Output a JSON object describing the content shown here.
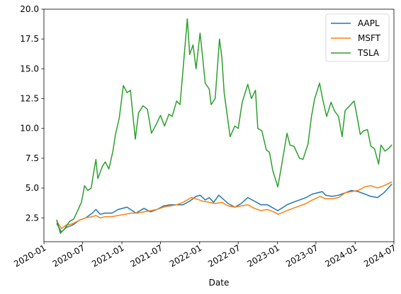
{
  "chart_data": {
    "type": "line",
    "title": "",
    "xlabel": "Date",
    "ylabel": "",
    "xlim": [
      "2020-01-01",
      "2024-07-01"
    ],
    "ylim": [
      0.5,
      20.0
    ],
    "grid": false,
    "legend_position": "top-right",
    "x_ticks": [
      "2020-01",
      "2020-07",
      "2021-01",
      "2021-07",
      "2022-01",
      "2022-07",
      "2023-01",
      "2023-07",
      "2024-01",
      "2024-07"
    ],
    "y_ticks": [
      "2.5",
      "5.0",
      "7.5",
      "10.0",
      "12.5",
      "15.0",
      "17.5",
      "20.0"
    ],
    "series": [
      {
        "name": "AAPL",
        "color": "#1f77b4",
        "points": [
          [
            "2020-03-02",
            2.0
          ],
          [
            "2020-03-23",
            1.3
          ],
          [
            "2020-04-15",
            1.7
          ],
          [
            "2020-05-15",
            1.9
          ],
          [
            "2020-06-15",
            2.3
          ],
          [
            "2020-07-15",
            2.5
          ],
          [
            "2020-08-15",
            2.9
          ],
          [
            "2020-09-01",
            3.2
          ],
          [
            "2020-09-21",
            2.8
          ],
          [
            "2020-10-15",
            2.9
          ],
          [
            "2020-11-15",
            2.9
          ],
          [
            "2020-12-15",
            3.2
          ],
          [
            "2021-01-25",
            3.4
          ],
          [
            "2021-03-08",
            2.9
          ],
          [
            "2021-04-15",
            3.3
          ],
          [
            "2021-05-15",
            3.0
          ],
          [
            "2021-06-15",
            3.2
          ],
          [
            "2021-07-15",
            3.5
          ],
          [
            "2021-08-15",
            3.6
          ],
          [
            "2021-09-15",
            3.6
          ],
          [
            "2021-10-15",
            3.6
          ],
          [
            "2021-11-15",
            3.9
          ],
          [
            "2021-12-15",
            4.3
          ],
          [
            "2022-01-03",
            4.4
          ],
          [
            "2022-01-28",
            4.0
          ],
          [
            "2022-02-15",
            4.2
          ],
          [
            "2022-03-08",
            3.8
          ],
          [
            "2022-04-01",
            4.4
          ],
          [
            "2022-05-15",
            3.7
          ],
          [
            "2022-06-15",
            3.4
          ],
          [
            "2022-07-15",
            3.7
          ],
          [
            "2022-08-15",
            4.2
          ],
          [
            "2022-09-15",
            3.9
          ],
          [
            "2022-10-15",
            3.6
          ],
          [
            "2022-11-15",
            3.6
          ],
          [
            "2023-01-03",
            3.1
          ],
          [
            "2023-02-15",
            3.6
          ],
          [
            "2023-03-15",
            3.8
          ],
          [
            "2023-04-15",
            4.0
          ],
          [
            "2023-05-15",
            4.2
          ],
          [
            "2023-06-15",
            4.5
          ],
          [
            "2023-07-31",
            4.7
          ],
          [
            "2023-08-15",
            4.4
          ],
          [
            "2023-09-15",
            4.3
          ],
          [
            "2023-10-15",
            4.4
          ],
          [
            "2023-11-15",
            4.6
          ],
          [
            "2023-12-15",
            4.8
          ],
          [
            "2024-01-15",
            4.7
          ],
          [
            "2024-02-15",
            4.5
          ],
          [
            "2024-03-15",
            4.3
          ],
          [
            "2024-04-15",
            4.2
          ],
          [
            "2024-05-15",
            4.6
          ],
          [
            "2024-06-20",
            5.3
          ]
        ]
      },
      {
        "name": "MSFT",
        "color": "#ff7f0e",
        "points": [
          [
            "2020-03-02",
            2.2
          ],
          [
            "2020-03-23",
            1.6
          ],
          [
            "2020-04-15",
            1.9
          ],
          [
            "2020-05-15",
            2.0
          ],
          [
            "2020-06-15",
            2.3
          ],
          [
            "2020-07-15",
            2.5
          ],
          [
            "2020-08-15",
            2.6
          ],
          [
            "2020-09-01",
            2.7
          ],
          [
            "2020-09-21",
            2.5
          ],
          [
            "2020-10-15",
            2.6
          ],
          [
            "2020-11-15",
            2.6
          ],
          [
            "2020-12-15",
            2.7
          ],
          [
            "2021-01-15",
            2.8
          ],
          [
            "2021-02-15",
            2.9
          ],
          [
            "2021-03-15",
            2.9
          ],
          [
            "2021-04-15",
            3.0
          ],
          [
            "2021-05-15",
            3.1
          ],
          [
            "2021-06-15",
            3.2
          ],
          [
            "2021-07-15",
            3.4
          ],
          [
            "2021-08-15",
            3.5
          ],
          [
            "2021-09-15",
            3.6
          ],
          [
            "2021-10-15",
            3.8
          ],
          [
            "2021-11-22",
            4.2
          ],
          [
            "2021-12-15",
            4.1
          ],
          [
            "2022-01-15",
            3.9
          ],
          [
            "2022-02-15",
            3.8
          ],
          [
            "2022-03-15",
            3.7
          ],
          [
            "2022-04-15",
            3.8
          ],
          [
            "2022-05-15",
            3.5
          ],
          [
            "2022-06-15",
            3.4
          ],
          [
            "2022-07-15",
            3.5
          ],
          [
            "2022-08-15",
            3.6
          ],
          [
            "2022-09-15",
            3.3
          ],
          [
            "2022-10-15",
            3.1
          ],
          [
            "2022-11-15",
            3.2
          ],
          [
            "2022-12-15",
            3.0
          ],
          [
            "2023-01-05",
            2.8
          ],
          [
            "2023-02-15",
            3.1
          ],
          [
            "2023-03-15",
            3.3
          ],
          [
            "2023-04-15",
            3.5
          ],
          [
            "2023-05-15",
            3.7
          ],
          [
            "2023-06-15",
            4.0
          ],
          [
            "2023-07-20",
            4.3
          ],
          [
            "2023-08-15",
            4.1
          ],
          [
            "2023-09-15",
            4.1
          ],
          [
            "2023-10-15",
            4.2
          ],
          [
            "2023-11-15",
            4.6
          ],
          [
            "2023-12-15",
            4.7
          ],
          [
            "2024-01-15",
            4.8
          ],
          [
            "2024-02-15",
            5.1
          ],
          [
            "2024-03-15",
            5.2
          ],
          [
            "2024-04-15",
            5.0
          ],
          [
            "2024-05-15",
            5.2
          ],
          [
            "2024-06-20",
            5.5
          ]
        ]
      },
      {
        "name": "TSLA",
        "color": "#2ca02c",
        "points": [
          [
            "2020-03-02",
            2.3
          ],
          [
            "2020-03-18",
            1.2
          ],
          [
            "2020-04-08",
            1.6
          ],
          [
            "2020-04-30",
            2.2
          ],
          [
            "2020-05-20",
            2.4
          ],
          [
            "2020-06-10",
            3.2
          ],
          [
            "2020-06-25",
            3.8
          ],
          [
            "2020-07-10",
            5.2
          ],
          [
            "2020-07-25",
            4.8
          ],
          [
            "2020-08-10",
            5.0
          ],
          [
            "2020-08-25",
            6.7
          ],
          [
            "2020-09-01",
            7.4
          ],
          [
            "2020-09-10",
            5.8
          ],
          [
            "2020-10-01",
            6.8
          ],
          [
            "2020-10-15",
            7.2
          ],
          [
            "2020-11-01",
            6.6
          ],
          [
            "2020-11-20",
            8.1
          ],
          [
            "2020-12-01",
            9.4
          ],
          [
            "2020-12-20",
            10.9
          ],
          [
            "2021-01-08",
            13.6
          ],
          [
            "2021-01-25",
            13.0
          ],
          [
            "2021-02-10",
            13.2
          ],
          [
            "2021-03-05",
            9.1
          ],
          [
            "2021-03-20",
            11.3
          ],
          [
            "2021-04-10",
            11.9
          ],
          [
            "2021-05-01",
            11.6
          ],
          [
            "2021-05-20",
            9.6
          ],
          [
            "2021-06-10",
            10.3
          ],
          [
            "2021-07-01",
            11.1
          ],
          [
            "2021-07-20",
            10.2
          ],
          [
            "2021-08-10",
            11.2
          ],
          [
            "2021-08-25",
            11.0
          ],
          [
            "2021-09-15",
            12.3
          ],
          [
            "2021-10-01",
            12.0
          ],
          [
            "2021-10-15",
            14.9
          ],
          [
            "2021-11-04",
            19.2
          ],
          [
            "2021-11-15",
            16.2
          ],
          [
            "2021-12-01",
            17.0
          ],
          [
            "2021-12-15",
            15.0
          ],
          [
            "2022-01-03",
            18.0
          ],
          [
            "2022-01-15",
            16.0
          ],
          [
            "2022-01-27",
            13.8
          ],
          [
            "2022-02-15",
            13.3
          ],
          [
            "2022-02-24",
            12.0
          ],
          [
            "2022-03-15",
            12.5
          ],
          [
            "2022-04-04",
            17.5
          ],
          [
            "2022-04-15",
            16.0
          ],
          [
            "2022-04-26",
            13.0
          ],
          [
            "2022-05-24",
            9.3
          ],
          [
            "2022-06-15",
            10.2
          ],
          [
            "2022-07-01",
            10.0
          ],
          [
            "2022-07-20",
            12.2
          ],
          [
            "2022-08-15",
            13.7
          ],
          [
            "2022-09-01",
            12.5
          ],
          [
            "2022-09-20",
            13.2
          ],
          [
            "2022-10-01",
            10.0
          ],
          [
            "2022-10-20",
            9.8
          ],
          [
            "2022-11-10",
            8.2
          ],
          [
            "2022-11-25",
            8.0
          ],
          [
            "2022-12-10",
            6.5
          ],
          [
            "2023-01-03",
            5.1
          ],
          [
            "2023-01-20",
            6.8
          ],
          [
            "2023-02-15",
            9.6
          ],
          [
            "2023-03-01",
            8.6
          ],
          [
            "2023-03-20",
            8.5
          ],
          [
            "2023-04-15",
            7.5
          ],
          [
            "2023-05-01",
            7.4
          ],
          [
            "2023-05-25",
            8.7
          ],
          [
            "2023-06-10",
            11.0
          ],
          [
            "2023-06-25",
            12.5
          ],
          [
            "2023-07-18",
            13.8
          ],
          [
            "2023-08-01",
            12.5
          ],
          [
            "2023-08-20",
            11.0
          ],
          [
            "2023-09-10",
            12.2
          ],
          [
            "2023-09-25",
            11.5
          ],
          [
            "2023-10-15",
            11.0
          ],
          [
            "2023-11-01",
            9.3
          ],
          [
            "2023-11-15",
            11.5
          ],
          [
            "2023-12-01",
            11.8
          ],
          [
            "2023-12-27",
            12.3
          ],
          [
            "2024-01-10",
            11.0
          ],
          [
            "2024-01-25",
            9.5
          ],
          [
            "2024-02-10",
            9.8
          ],
          [
            "2024-02-28",
            9.9
          ],
          [
            "2024-03-15",
            8.5
          ],
          [
            "2024-04-01",
            8.3
          ],
          [
            "2024-04-20",
            7.0
          ],
          [
            "2024-05-01",
            8.6
          ],
          [
            "2024-05-20",
            8.1
          ],
          [
            "2024-06-05",
            8.3
          ],
          [
            "2024-06-20",
            8.6
          ]
        ]
      }
    ]
  }
}
